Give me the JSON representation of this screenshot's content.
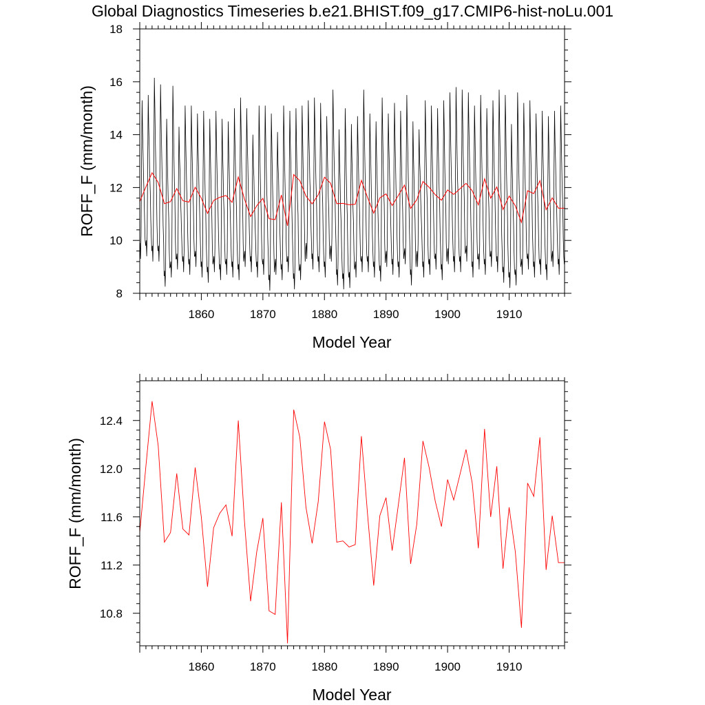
{
  "title": "Global Diagnostics Timeseries b.e21.BHIST.f09_g17.CMIP6-hist-noLu.001",
  "colors": {
    "monthly": "#000000",
    "annual": "#ff0000",
    "frame": "#000000"
  },
  "chart_data": [
    {
      "type": "line",
      "xlabel": "Model Year",
      "ylabel": "ROFF_F (mm/month)",
      "xlim": [
        1850,
        1919
      ],
      "ylim": [
        8,
        18
      ],
      "xticks": [
        1860,
        1870,
        1880,
        1890,
        1900,
        1910
      ],
      "xtick_labels": [
        "1860",
        "1870",
        "1880",
        "1890",
        "1900",
        "1910"
      ],
      "yticks": [
        8,
        10,
        12,
        14,
        16,
        18
      ],
      "ytick_labels": [
        "8",
        "10",
        "12",
        "14",
        "16",
        "18"
      ],
      "grid": false,
      "series": [
        {
          "kind": "monthly",
          "color": "#000000",
          "note_pattern": "seasonal cycle, one max and one min per year",
          "peaks": [
            15.3,
            15.5,
            16.15,
            15.9,
            14.6,
            15.85,
            14.3,
            15.1,
            15.1,
            14.8,
            14.9,
            14.6,
            14.9,
            14.6,
            14.5,
            15.0,
            15.4,
            15.0,
            14.0,
            15.1,
            15.1,
            14.8,
            14.1,
            15.1,
            14.9,
            15.0,
            15.1,
            15.3,
            15.4,
            15.2,
            14.7,
            15.7,
            14.2,
            15.0,
            14.4,
            14.7,
            15.7,
            14.8,
            14.5,
            15.4,
            14.8,
            15.2,
            14.9,
            15.5,
            14.5,
            14.2,
            15.3,
            15.1,
            15.0,
            15.3,
            15.6,
            15.8,
            15.7,
            15.6,
            15.1,
            15.5,
            15.0,
            15.3,
            15.7,
            15.5,
            14.4,
            15.6,
            15.2,
            15.3,
            14.8,
            14.9,
            14.7,
            14.9,
            15.1
          ],
          "troughs": [
            9.3,
            9.4,
            9.2,
            9.2,
            8.25,
            8.6,
            8.9,
            8.8,
            8.7,
            9.0,
            8.6,
            8.4,
            8.8,
            8.5,
            8.7,
            8.6,
            8.5,
            9.0,
            8.8,
            8.6,
            8.7,
            8.1,
            8.7,
            8.5,
            8.8,
            8.15,
            8.5,
            9.3,
            8.9,
            8.8,
            8.6,
            9.2,
            8.3,
            8.15,
            8.2,
            8.6,
            8.8,
            8.8,
            8.6,
            8.45,
            9.0,
            8.7,
            8.6,
            9.1,
            8.3,
            9.0,
            8.6,
            8.7,
            8.9,
            8.5,
            9.1,
            8.8,
            8.8,
            9.2,
            8.6,
            8.9,
            8.7,
            9.0,
            8.8,
            8.4,
            8.2,
            8.3,
            8.7,
            8.9,
            8.6,
            8.7,
            8.5,
            9.0,
            8.7
          ]
        },
        {
          "kind": "annual",
          "color": "#ff0000",
          "note": "same values as lower panel"
        }
      ]
    },
    {
      "type": "line",
      "xlabel": "Model Year",
      "ylabel": "ROFF_F (mm/month)",
      "xlim": [
        1850,
        1919
      ],
      "ylim": [
        10.53,
        12.73
      ],
      "xticks": [
        1860,
        1870,
        1880,
        1890,
        1900,
        1910
      ],
      "xtick_labels": [
        "1860",
        "1870",
        "1880",
        "1890",
        "1900",
        "1910"
      ],
      "yticks": [
        10.8,
        11.2,
        11.6,
        12.0,
        12.4
      ],
      "ytick_labels": [
        "10.8",
        "11.2",
        "11.6",
        "12.0",
        "12.4"
      ],
      "grid": false,
      "series": [
        {
          "kind": "annual",
          "color": "#ff0000",
          "x": [
            1850,
            1851,
            1852,
            1853,
            1854,
            1855,
            1856,
            1857,
            1858,
            1859,
            1860,
            1861,
            1862,
            1863,
            1864,
            1865,
            1866,
            1867,
            1868,
            1869,
            1870,
            1871,
            1872,
            1873,
            1874,
            1875,
            1876,
            1877,
            1878,
            1879,
            1880,
            1881,
            1882,
            1883,
            1884,
            1885,
            1886,
            1887,
            1888,
            1889,
            1890,
            1891,
            1892,
            1893,
            1894,
            1895,
            1896,
            1897,
            1898,
            1899,
            1900,
            1901,
            1902,
            1903,
            1904,
            1905,
            1906,
            1907,
            1908,
            1909,
            1910,
            1911,
            1912,
            1913,
            1914,
            1915,
            1916,
            1917,
            1918,
            1919
          ],
          "values": [
            11.47,
            12.02,
            12.56,
            12.19,
            11.39,
            11.47,
            11.96,
            11.5,
            11.45,
            12.01,
            11.6,
            11.02,
            11.51,
            11.63,
            11.7,
            11.44,
            12.4,
            11.57,
            10.9,
            11.31,
            11.59,
            10.82,
            10.79,
            11.72,
            10.55,
            12.49,
            12.26,
            11.68,
            11.38,
            11.73,
            12.39,
            12.16,
            11.39,
            11.4,
            11.35,
            11.37,
            12.27,
            11.62,
            11.03,
            11.61,
            11.76,
            11.32,
            11.7,
            12.09,
            11.21,
            11.54,
            12.23,
            12.01,
            11.73,
            11.52,
            11.91,
            11.74,
            11.95,
            12.16,
            11.88,
            11.34,
            12.33,
            11.6,
            12.02,
            11.17,
            11.68,
            11.31,
            10.68,
            11.88,
            11.77,
            12.26,
            11.16,
            11.61,
            11.22,
            11.22
          ]
        }
      ]
    }
  ]
}
